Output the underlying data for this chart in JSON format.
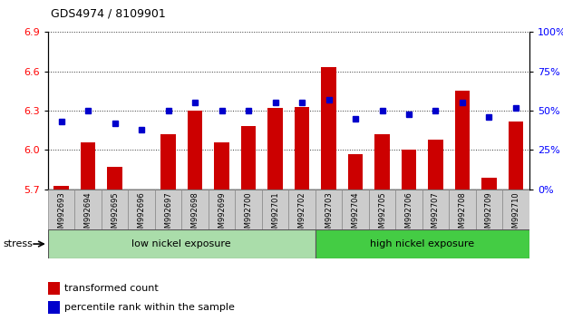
{
  "title": "GDS4974 / 8109901",
  "samples": [
    "GSM992693",
    "GSM992694",
    "GSM992695",
    "GSM992696",
    "GSM992697",
    "GSM992698",
    "GSM992699",
    "GSM992700",
    "GSM992701",
    "GSM992702",
    "GSM992703",
    "GSM992704",
    "GSM992705",
    "GSM992706",
    "GSM992707",
    "GSM992708",
    "GSM992709",
    "GSM992710"
  ],
  "transformed_count": [
    5.73,
    6.06,
    5.87,
    5.7,
    6.12,
    6.3,
    6.06,
    6.18,
    6.32,
    6.33,
    6.63,
    5.97,
    6.12,
    6.0,
    6.08,
    6.45,
    5.79,
    6.22
  ],
  "percentile_rank": [
    43,
    50,
    42,
    38,
    50,
    55,
    50,
    50,
    55,
    55,
    57,
    45,
    50,
    48,
    50,
    55,
    46,
    52
  ],
  "ylim_left": [
    5.7,
    6.9
  ],
  "ylim_right": [
    0,
    100
  ],
  "yticks_left": [
    5.7,
    6.0,
    6.3,
    6.6,
    6.9
  ],
  "yticks_right": [
    0,
    25,
    50,
    75,
    100
  ],
  "bar_color": "#cc0000",
  "dot_color": "#0000cc",
  "group1_label": "low nickel exposure",
  "group2_label": "high nickel exposure",
  "group1_count": 10,
  "group2_count": 8,
  "group1_color": "#aaddaa",
  "group2_color": "#44cc44",
  "stress_label": "stress",
  "legend1": "transformed count",
  "legend2": "percentile rank within the sample",
  "bar_width": 0.55
}
